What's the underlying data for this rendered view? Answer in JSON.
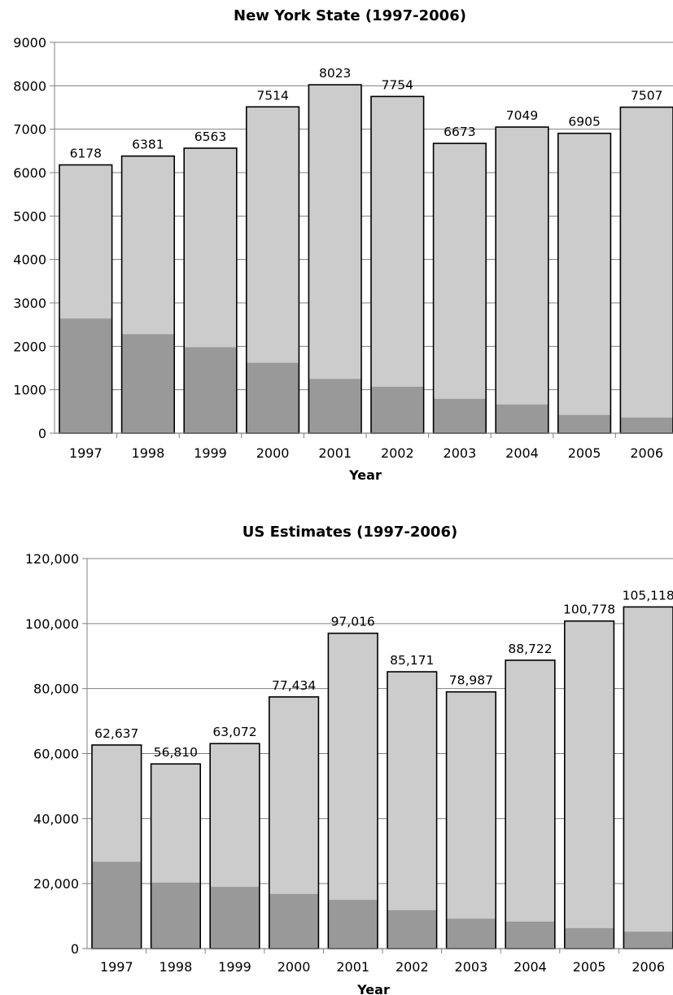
{
  "colors": {
    "bar_total": "#cccccc",
    "bar_lower": "#999999",
    "bar_outline": "#000000",
    "gridline": "#808080",
    "axis": "#808080"
  },
  "chart_data": [
    {
      "type": "bar",
      "stacked_overlay": true,
      "title": "New York State (1997-2006)",
      "xlabel": "Year",
      "ylabel": "",
      "ylim": [
        0,
        9000
      ],
      "ytick_step": 1000,
      "yticks": [
        "0",
        "1000",
        "2000",
        "3000",
        "4000",
        "5000",
        "6000",
        "7000",
        "8000",
        "9000"
      ],
      "grid": true,
      "categories": [
        "1997",
        "1998",
        "1999",
        "2000",
        "2001",
        "2002",
        "2003",
        "2004",
        "2005",
        "2006"
      ],
      "series": [
        {
          "values": [
            6178,
            6381,
            6563,
            7514,
            8023,
            7754,
            6673,
            7049,
            6905,
            7507
          ],
          "labels": [
            "6178",
            "6381",
            "6563",
            "7514",
            "8023",
            "7754",
            "6673",
            "7049",
            "6905",
            "7507"
          ]
        },
        {
          "values": [
            2640,
            2280,
            1980,
            1620,
            1250,
            1070,
            790,
            660,
            420,
            360
          ]
        }
      ]
    },
    {
      "type": "bar",
      "stacked_overlay": true,
      "title": "US Estimates (1997-2006)",
      "xlabel": "Year",
      "ylabel": "",
      "ylim": [
        0,
        120000
      ],
      "ytick_step": 20000,
      "yticks": [
        "0",
        "20,000",
        "40,000",
        "60,000",
        "80,000",
        "100,000",
        "120,000"
      ],
      "grid": true,
      "categories": [
        "1997",
        "1998",
        "1999",
        "2000",
        "2001",
        "2002",
        "2003",
        "2004",
        "2005",
        "2006"
      ],
      "series": [
        {
          "values": [
            62637,
            56810,
            63072,
            77434,
            97016,
            85171,
            78987,
            88722,
            100778,
            105118
          ],
          "labels": [
            "62,637",
            "56,810",
            "63,072",
            "77,434",
            "97,016",
            "85,171",
            "78,987",
            "88,722",
            "100,778",
            "105,118"
          ]
        },
        {
          "values": [
            26700,
            20300,
            19000,
            16800,
            15000,
            11800,
            9200,
            8300,
            6300,
            5200
          ]
        }
      ]
    }
  ]
}
